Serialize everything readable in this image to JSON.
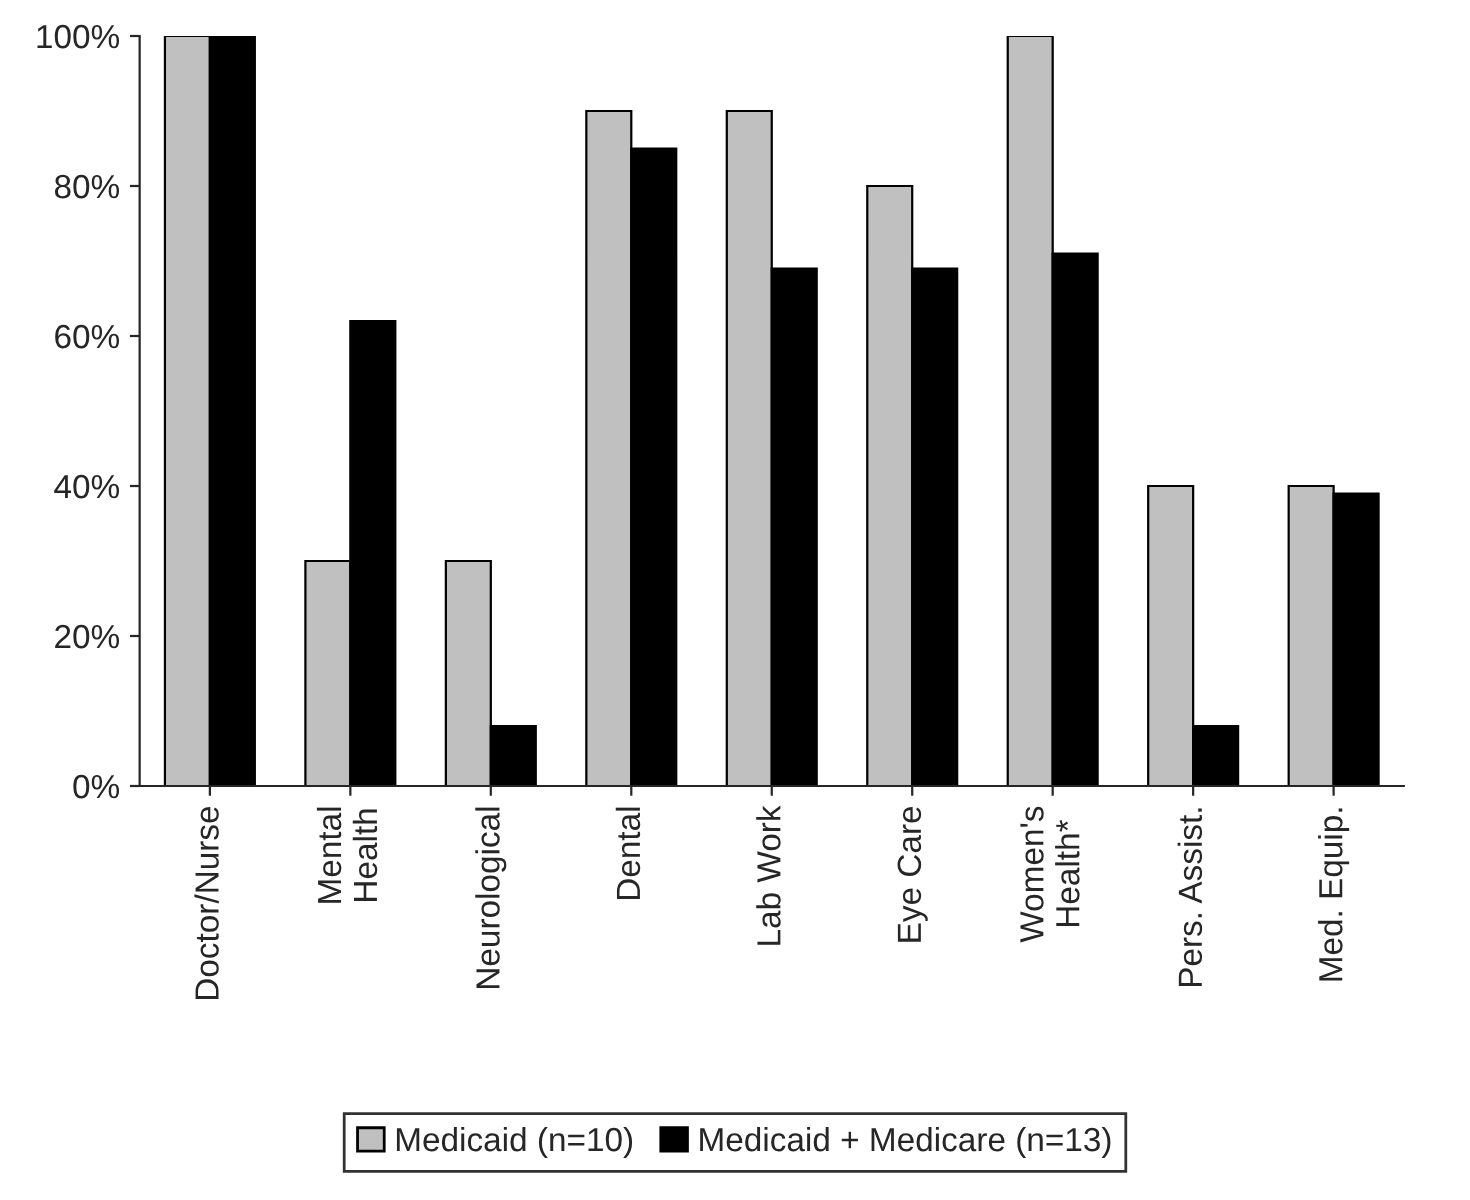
{
  "chart_data": {
    "type": "bar",
    "categories": [
      "Doctor/Nurse",
      "Mental\nHealth",
      "Neurological",
      "Dental",
      "Lab Work",
      "Eye Care",
      "Women's\nHealth*",
      "Pers. Assist.",
      "Med. Equip."
    ],
    "series": [
      {
        "name": "Medicaid (n=10)",
        "color": "#c0c0c0",
        "values": [
          100,
          30,
          30,
          90,
          90,
          80,
          100,
          40,
          40
        ]
      },
      {
        "name": "Medicaid + Medicare (n=13)",
        "color": "#000000",
        "values": [
          100,
          62,
          8,
          85,
          69,
          69,
          71,
          8,
          39
        ]
      }
    ],
    "ylim": [
      0,
      100
    ],
    "yticks": [
      {
        "value": 0,
        "label": "0%"
      },
      {
        "value": 20,
        "label": "20%"
      },
      {
        "value": 40,
        "label": "40%"
      },
      {
        "value": 60,
        "label": "60%"
      },
      {
        "value": 80,
        "label": "80%"
      },
      {
        "value": 100,
        "label": "100%"
      }
    ],
    "grid": false,
    "legend": "bottom"
  }
}
